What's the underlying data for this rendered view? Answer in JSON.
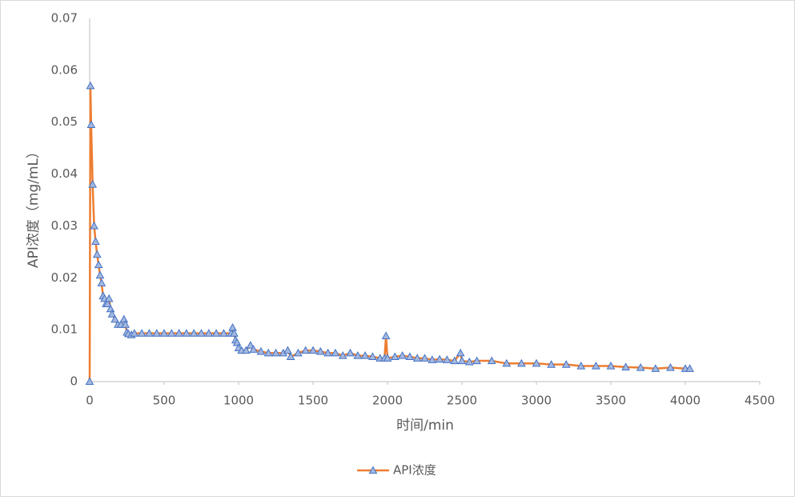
{
  "chart_data": {
    "type": "line",
    "x_label": "时间/min",
    "y_label": "API浓度（mg/mL）",
    "x": [
      0,
      5,
      10,
      20,
      30,
      40,
      50,
      60,
      70,
      80,
      90,
      100,
      110,
      120,
      130,
      140,
      150,
      170,
      190,
      210,
      230,
      240,
      250,
      260,
      280,
      300,
      350,
      400,
      450,
      500,
      550,
      600,
      650,
      700,
      750,
      800,
      850,
      900,
      950,
      960,
      970,
      980,
      990,
      1000,
      1020,
      1050,
      1080,
      1100,
      1150,
      1200,
      1250,
      1300,
      1330,
      1350,
      1400,
      1450,
      1500,
      1550,
      1600,
      1650,
      1700,
      1750,
      1800,
      1850,
      1900,
      1950,
      1980,
      1990,
      2000,
      2050,
      2100,
      2150,
      2200,
      2250,
      2300,
      2350,
      2400,
      2450,
      2490,
      2500,
      2550,
      2600,
      2700,
      2800,
      2900,
      3000,
      3100,
      3200,
      3300,
      3400,
      3500,
      3600,
      3700,
      3800,
      3900,
      4000,
      4030
    ],
    "series": [
      {
        "name": "API浓度",
        "color": "#ed7d31",
        "marker_fill": "#a5b8df",
        "marker_stroke": "#4472c4",
        "values": [
          0,
          0.057,
          0.0495,
          0.038,
          0.03,
          0.027,
          0.0245,
          0.0225,
          0.0205,
          0.019,
          0.0165,
          0.016,
          0.015,
          0.015,
          0.016,
          0.014,
          0.013,
          0.012,
          0.011,
          0.011,
          0.012,
          0.011,
          0.0095,
          0.0092,
          0.009,
          0.0093,
          0.0093,
          0.0093,
          0.0093,
          0.0093,
          0.0093,
          0.0093,
          0.0093,
          0.0093,
          0.0093,
          0.0093,
          0.0093,
          0.0093,
          0.0093,
          0.0104,
          0.0093,
          0.008,
          0.0075,
          0.0065,
          0.006,
          0.006,
          0.007,
          0.0062,
          0.0058,
          0.0055,
          0.0055,
          0.0055,
          0.006,
          0.0048,
          0.0055,
          0.006,
          0.006,
          0.0058,
          0.0055,
          0.0055,
          0.005,
          0.0055,
          0.005,
          0.005,
          0.0048,
          0.0045,
          0.0045,
          0.0088,
          0.0045,
          0.0048,
          0.005,
          0.0048,
          0.0045,
          0.0045,
          0.0042,
          0.0043,
          0.0042,
          0.004,
          0.0055,
          0.004,
          0.0038,
          0.004,
          0.004,
          0.0035,
          0.0035,
          0.0035,
          0.0033,
          0.0033,
          0.003,
          0.003,
          0.003,
          0.0028,
          0.0027,
          0.0025,
          0.0027,
          0.0025,
          0.0025
        ]
      }
    ],
    "xlim": [
      0,
      4500
    ],
    "xticks": [
      0,
      500,
      1000,
      1500,
      2000,
      2500,
      3000,
      3500,
      4000,
      4500
    ],
    "ylim": [
      0,
      0.07
    ],
    "yticks": [
      0,
      0.01,
      0.02,
      0.03,
      0.04,
      0.05,
      0.06,
      0.07
    ],
    "grid": false,
    "legend": "bottom"
  }
}
